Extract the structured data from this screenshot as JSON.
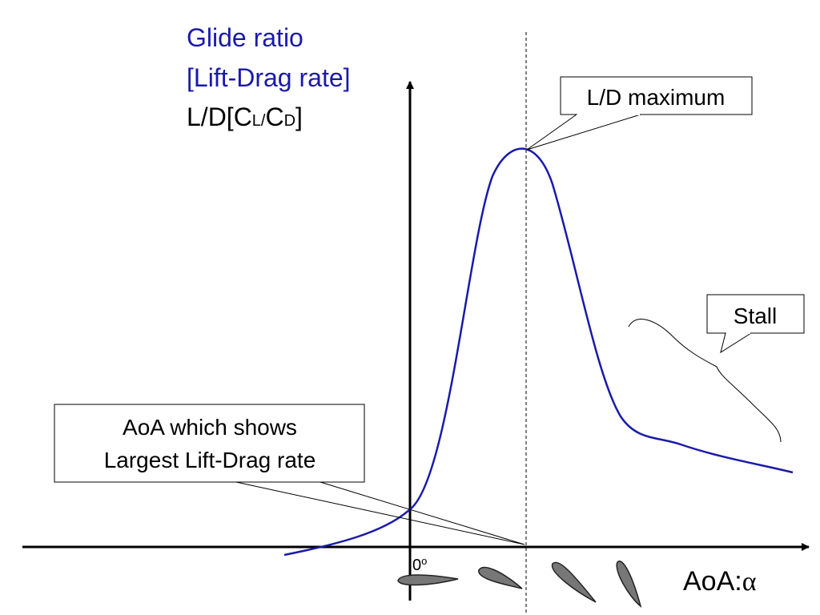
{
  "axis_label_y": {
    "lines": [
      "Glide ratio",
      "[Lift-Drag rate]"
    ],
    "formula": [
      "L/D[C",
      "L/",
      "C",
      "D",
      "]"
    ]
  },
  "callouts": {
    "maximum": "L/D maximum",
    "stall": "Stall",
    "aoa_lines": [
      "AoA which shows",
      "Largest Lift-Drag rate"
    ]
  },
  "x_axis": {
    "origin": "0",
    "origin_sup": "o",
    "label": "AoA:",
    "symbol": "α"
  }
}
